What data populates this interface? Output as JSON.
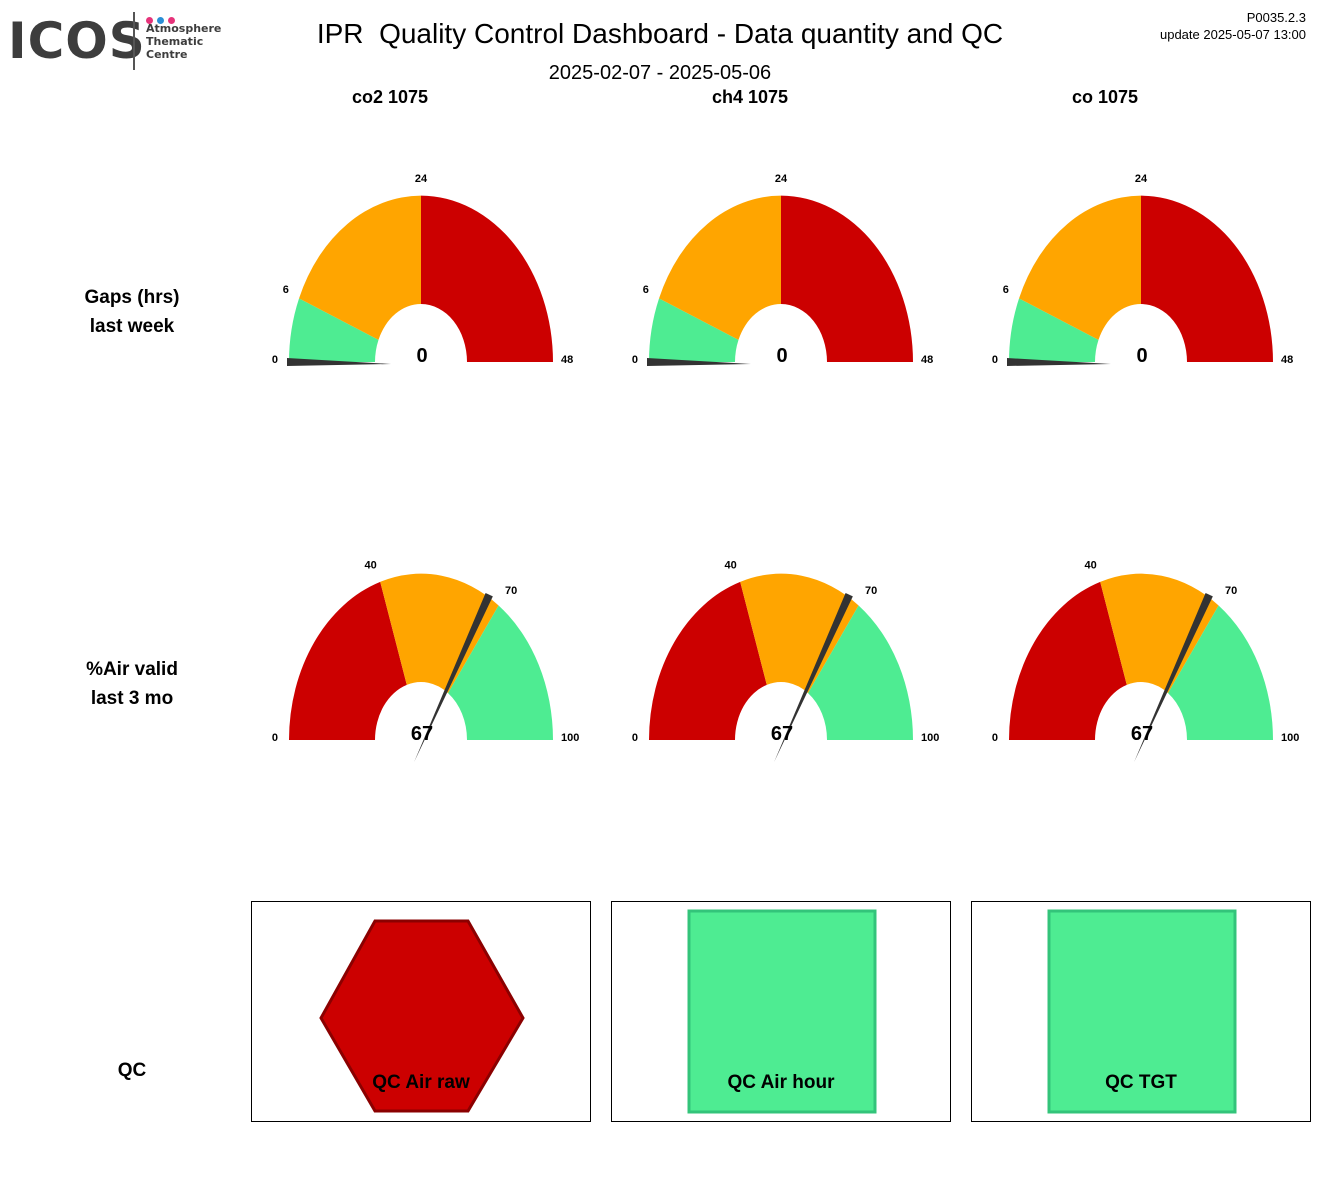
{
  "logo": {
    "wordmark": "ICOS",
    "subtitle": "Atmosphere\nThematic\nCentre",
    "dot_colors": [
      "#e6337a",
      "#2a8fd6",
      "#e6337a"
    ]
  },
  "header": {
    "title": "IPR  Quality Control Dashboard - Data quantity and QC",
    "date_range": "2025-02-07 - 2025-05-06",
    "version": "P0035.2.3",
    "update": "update  2025-05-07 13:00"
  },
  "columns": [
    "co2 1075",
    "ch4 1075",
    "co 1075"
  ],
  "rows": {
    "gaps": {
      "line1": "Gaps (hrs)",
      "line2": "last week"
    },
    "air_valid": {
      "line1": "%Air valid",
      "line2": "last 3 mo"
    },
    "qc": {
      "label": "QC"
    }
  },
  "colors": {
    "red": "#cc0000",
    "orange": "#ffa500",
    "green": "#4eec92",
    "needle": "#333333"
  },
  "gauges": {
    "gaps": {
      "min": 0,
      "max": 48,
      "segments": [
        {
          "from": 0,
          "to": 6,
          "color": "green"
        },
        {
          "from": 6,
          "to": 24,
          "color": "orange"
        },
        {
          "from": 24,
          "to": 48,
          "color": "red"
        }
      ],
      "tick_labels": [
        "0",
        "6",
        "24",
        "48"
      ],
      "values": [
        0,
        0,
        0
      ],
      "value_labels": [
        "0",
        "0",
        "0"
      ]
    },
    "air_valid": {
      "min": 0,
      "max": 100,
      "segments": [
        {
          "from": 0,
          "to": 40,
          "color": "red"
        },
        {
          "from": 40,
          "to": 70,
          "color": "orange"
        },
        {
          "from": 70,
          "to": 100,
          "color": "green"
        }
      ],
      "tick_labels": [
        "0",
        "40",
        "70",
        "100"
      ],
      "values": [
        67,
        67,
        67
      ],
      "value_labels": [
        "67",
        "67",
        "67"
      ]
    }
  },
  "qc_panels": [
    {
      "label": "QC Air raw",
      "shape": "hexagon",
      "status_color": "red"
    },
    {
      "label": "QC Air hour",
      "shape": "square",
      "status_color": "green"
    },
    {
      "label": "QC TGT",
      "shape": "square",
      "status_color": "green"
    }
  ]
}
